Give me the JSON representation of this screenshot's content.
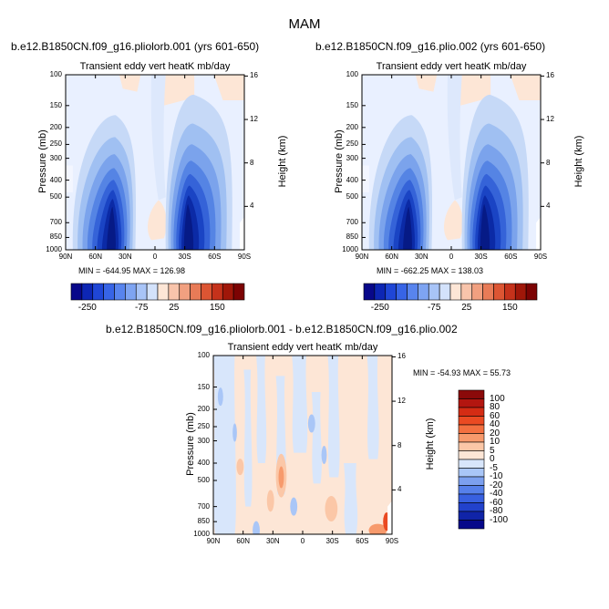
{
  "title": "MAM",
  "panels": [
    {
      "id": "p1",
      "title": "b.e12.B1850CN.f09_g16.pliolorb.001 (yrs 601-650)",
      "subtitle": "Transient eddy vert heatK mb/day",
      "stats": "MIN = -644.95   MAX = 126.98",
      "ylabel": "Pressure (mb)",
      "y2label": "Height (km)",
      "y_ticks": [
        "100",
        "150",
        "200",
        "250",
        "300",
        "400",
        "500",
        "700",
        "850",
        "1000"
      ],
      "x_ticks": [
        "90N",
        "60N",
        "30N",
        "0",
        "30S",
        "60S",
        "90S"
      ],
      "h_ticks": [
        "16",
        "12",
        "8",
        "4"
      ]
    },
    {
      "id": "p2",
      "title": "b.e12.B1850CN.f09_g16.plio.002 (yrs 601-650)",
      "subtitle": "Transient eddy vert heatK mb/day",
      "stats": "MIN = -662.25   MAX = 138.03",
      "ylabel": "Pressure (mb)",
      "y2label": "Height (km)",
      "y_ticks": [
        "100",
        "150",
        "200",
        "250",
        "300",
        "400",
        "500",
        "700",
        "850",
        "1000"
      ],
      "x_ticks": [
        "90N",
        "60N",
        "30N",
        "0",
        "30S",
        "60S",
        "90S"
      ],
      "h_ticks": [
        "16",
        "12",
        "8",
        "4"
      ]
    },
    {
      "id": "p3",
      "title": "b.e12.B1850CN.f09_g16.pliolorb.001 - b.e12.B1850CN.f09_g16.plio.002",
      "subtitle": "Transient eddy vert heatK mb/day",
      "stats": "MIN = -54.93   MAX = 55.73",
      "ylabel": "Pressure (mb)",
      "y2label": "Height (km)",
      "y_ticks": [
        "100",
        "150",
        "200",
        "250",
        "300",
        "400",
        "500",
        "700",
        "850",
        "1000"
      ],
      "x_ticks": [
        "90N",
        "60N",
        "30N",
        "0",
        "30S",
        "60S",
        "90S"
      ],
      "h_ticks": [
        "16",
        "12",
        "8",
        "4"
      ]
    }
  ],
  "colorbar_h": {
    "labels": [
      "-250",
      "-75",
      "25",
      "150"
    ],
    "colors": [
      "#08088a",
      "#0d26b4",
      "#1f46d6",
      "#3764e6",
      "#5884ee",
      "#7ea4f2",
      "#a8c4f7",
      "#d3e2fb",
      "#fde6d6",
      "#f8c4ab",
      "#f1a080",
      "#e87b57",
      "#dc5533",
      "#c5321b",
      "#a01709",
      "#7c0303"
    ]
  },
  "colorbar_v": {
    "labels": [
      "100",
      "80",
      "60",
      "40",
      "20",
      "10",
      "5",
      "0",
      "-5",
      "-10",
      "-20",
      "-40",
      "-60",
      "-80",
      "-100"
    ],
    "colors": [
      "#8b0a0a",
      "#b31610",
      "#d42c14",
      "#ea4a22",
      "#f37040",
      "#f79a6c",
      "#fbc7a7",
      "#fde6d6",
      "#d8e6fb",
      "#a9c6f7",
      "#7ca0ef",
      "#5680ea",
      "#3860e0",
      "#2242cc",
      "#1024a8",
      "#06088a"
    ]
  },
  "chart_data": [
    {
      "type": "heatmap",
      "title": "b.e12.B1850CN.f09_g16.pliolorb.001 (yrs 601-650)",
      "subtitle": "Transient eddy vert heatK mb/day",
      "xlabel": "",
      "ylabel": "Pressure (mb)",
      "y2label": "Height (km)",
      "x_categories": [
        "90N",
        "60N",
        "30N",
        "0",
        "30S",
        "60S",
        "90S"
      ],
      "y_levels_mb": [
        100,
        150,
        200,
        250,
        300,
        400,
        500,
        700,
        850,
        1000
      ],
      "height_km_ticks": [
        16,
        12,
        8,
        4
      ],
      "min": -644.95,
      "max": 126.98,
      "colorbar_ticks": [
        -250,
        -75,
        25,
        150
      ]
    },
    {
      "type": "heatmap",
      "title": "b.e12.B1850CN.f09_g16.plio.002 (yrs 601-650)",
      "subtitle": "Transient eddy vert heatK mb/day",
      "xlabel": "",
      "ylabel": "Pressure (mb)",
      "y2label": "Height (km)",
      "x_categories": [
        "90N",
        "60N",
        "30N",
        "0",
        "30S",
        "60S",
        "90S"
      ],
      "y_levels_mb": [
        100,
        150,
        200,
        250,
        300,
        400,
        500,
        700,
        850,
        1000
      ],
      "height_km_ticks": [
        16,
        12,
        8,
        4
      ],
      "min": -662.25,
      "max": 138.03,
      "colorbar_ticks": [
        -250,
        -75,
        25,
        150
      ]
    },
    {
      "type": "heatmap",
      "title": "b.e12.B1850CN.f09_g16.pliolorb.001 - b.e12.B1850CN.f09_g16.plio.002",
      "subtitle": "Transient eddy vert heatK mb/day",
      "xlabel": "",
      "ylabel": "Pressure (mb)",
      "y2label": "Height (km)",
      "x_categories": [
        "90N",
        "60N",
        "30N",
        "0",
        "30S",
        "60S",
        "90S"
      ],
      "y_levels_mb": [
        100,
        150,
        200,
        250,
        300,
        400,
        500,
        700,
        850,
        1000
      ],
      "height_km_ticks": [
        16,
        12,
        8,
        4
      ],
      "min": -54.93,
      "max": 55.73,
      "colorbar_levels": [
        100,
        80,
        60,
        40,
        20,
        10,
        5,
        0,
        -5,
        -10,
        -20,
        -40,
        -60,
        -80,
        -100
      ]
    }
  ]
}
